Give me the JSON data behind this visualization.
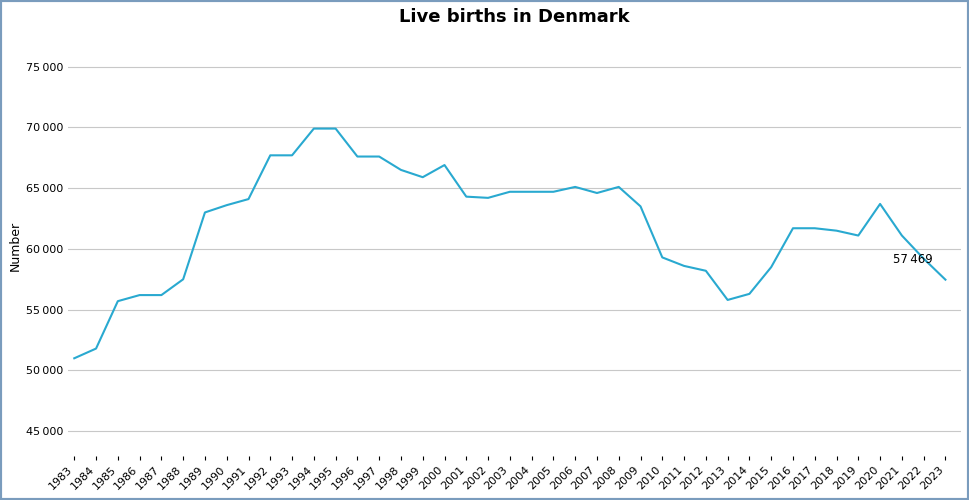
{
  "title": "Live births in Denmark",
  "ylabel": "Number",
  "years": [
    1983,
    1984,
    1985,
    1986,
    1987,
    1988,
    1989,
    1990,
    1991,
    1992,
    1993,
    1994,
    1995,
    1996,
    1997,
    1998,
    1999,
    2000,
    2001,
    2002,
    2003,
    2004,
    2005,
    2006,
    2007,
    2008,
    2009,
    2010,
    2011,
    2012,
    2013,
    2014,
    2015,
    2016,
    2017,
    2018,
    2019,
    2020,
    2021,
    2022,
    2023
  ],
  "values": [
    51000,
    51800,
    55700,
    56200,
    56200,
    57500,
    63000,
    63600,
    64100,
    67700,
    67700,
    69900,
    69900,
    67600,
    67600,
    66500,
    65900,
    66900,
    64300,
    64200,
    64700,
    64700,
    64700,
    65100,
    64600,
    65100,
    63500,
    59300,
    58600,
    58200,
    55800,
    56300,
    58500,
    61700,
    61700,
    61500,
    61100,
    63700,
    61100,
    59200,
    57469
  ],
  "last_year": 2023,
  "last_value": 57469,
  "line_color": "#29a9d0",
  "annotation_color": "#000000",
  "background_color": "#ffffff",
  "border_color": "#7a9cbd",
  "grid_color": "#c8c8c8",
  "ylim": [
    43000,
    77500
  ],
  "yticks": [
    45000,
    50000,
    55000,
    60000,
    65000,
    70000,
    75000
  ],
  "title_fontsize": 13,
  "ylabel_fontsize": 9,
  "tick_fontsize": 8,
  "annotation_fontsize": 8.5
}
